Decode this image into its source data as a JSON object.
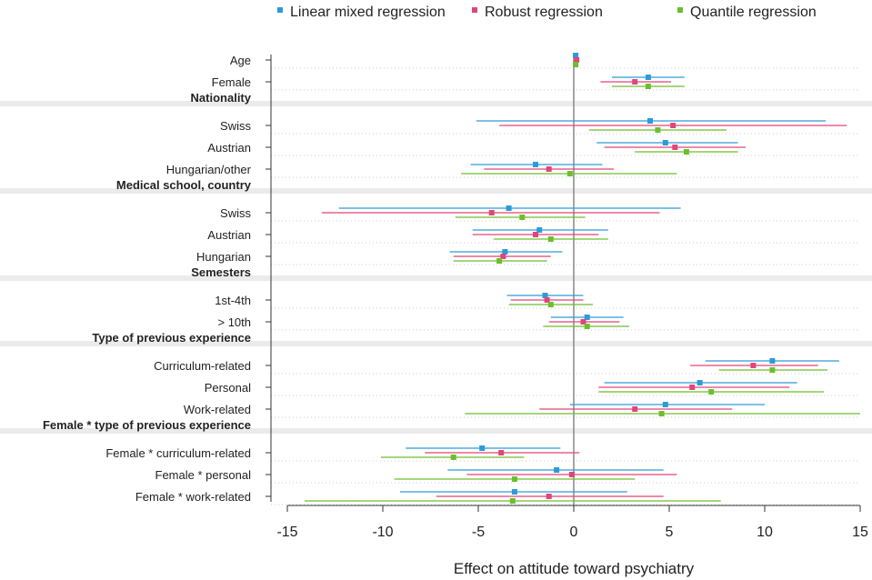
{
  "chart_data": {
    "type": "forest",
    "xlabel": "Effect on attitude toward psychiatry",
    "xlim": [
      -15,
      15
    ],
    "xticks": [
      -15,
      -10,
      -5,
      0,
      5,
      10,
      15
    ],
    "reference_line": 0,
    "series": [
      {
        "name": "Linear mixed regression",
        "color": "#2E9AD8"
      },
      {
        "name": "Robust regression",
        "color": "#E0457B"
      },
      {
        "name": "Quantile regression",
        "color": "#6DBE2E"
      }
    ],
    "rows": [
      {
        "label": "Age",
        "kind": "item",
        "estimates": [
          {
            "est": 0.1,
            "lo": 0.05,
            "hi": 0.15
          },
          {
            "est": 0.15,
            "lo": 0.1,
            "hi": 0.2
          },
          {
            "est": 0.1,
            "lo": 0.05,
            "hi": 0.15
          }
        ]
      },
      {
        "label": "Female",
        "kind": "item",
        "estimates": [
          {
            "est": 3.9,
            "lo": 2.0,
            "hi": 5.8
          },
          {
            "est": 3.2,
            "lo": 1.4,
            "hi": 5.1
          },
          {
            "est": 3.9,
            "lo": 2.0,
            "hi": 5.8
          }
        ]
      },
      {
        "label": "Nationality",
        "kind": "group"
      },
      {
        "label": "Swiss",
        "kind": "item",
        "estimates": [
          {
            "est": 4.0,
            "lo": -5.1,
            "hi": 13.2
          },
          {
            "est": 5.2,
            "lo": -3.9,
            "hi": 14.3
          },
          {
            "est": 4.4,
            "lo": 0.8,
            "hi": 8.0
          }
        ]
      },
      {
        "label": "Austrian",
        "kind": "item",
        "estimates": [
          {
            "est": 4.8,
            "lo": 1.2,
            "hi": 8.6
          },
          {
            "est": 5.3,
            "lo": 1.6,
            "hi": 9.0
          },
          {
            "est": 5.9,
            "lo": 3.2,
            "hi": 8.6
          }
        ]
      },
      {
        "label": "Hungarian/other",
        "kind": "item",
        "estimates": [
          {
            "est": -2.0,
            "lo": -5.4,
            "hi": 1.5
          },
          {
            "est": -1.3,
            "lo": -4.7,
            "hi": 2.1
          },
          {
            "est": -0.2,
            "lo": -5.9,
            "hi": 5.4
          }
        ]
      },
      {
        "label": "Medical school, country",
        "kind": "group"
      },
      {
        "label": "Swiss",
        "kind": "item",
        "estimates": [
          {
            "est": -3.4,
            "lo": -12.3,
            "hi": 5.6
          },
          {
            "est": -4.3,
            "lo": -13.2,
            "hi": 4.5
          },
          {
            "est": -2.7,
            "lo": -6.2,
            "hi": 0.6
          }
        ]
      },
      {
        "label": "Austrian",
        "kind": "item",
        "estimates": [
          {
            "est": -1.8,
            "lo": -5.3,
            "hi": 1.8
          },
          {
            "est": -2.0,
            "lo": -5.3,
            "hi": 1.3
          },
          {
            "est": -1.2,
            "lo": -4.2,
            "hi": 1.8
          }
        ]
      },
      {
        "label": "Hungarian",
        "kind": "item",
        "estimates": [
          {
            "est": -3.6,
            "lo": -6.5,
            "hi": -0.6
          },
          {
            "est": -3.7,
            "lo": -6.3,
            "hi": -1.2
          },
          {
            "est": -3.9,
            "lo": -6.3,
            "hi": -1.4
          }
        ]
      },
      {
        "label": "Semesters",
        "kind": "group"
      },
      {
        "label": "1st-4th",
        "kind": "item",
        "estimates": [
          {
            "est": -1.5,
            "lo": -3.5,
            "hi": 0.5
          },
          {
            "est": -1.4,
            "lo": -3.3,
            "hi": 0.5
          },
          {
            "est": -1.2,
            "lo": -3.4,
            "hi": 1.0
          }
        ]
      },
      {
        "label": "> 10th",
        "kind": "item",
        "estimates": [
          {
            "est": 0.7,
            "lo": -1.2,
            "hi": 2.6
          },
          {
            "est": 0.5,
            "lo": -1.3,
            "hi": 2.4
          },
          {
            "est": 0.7,
            "lo": -1.6,
            "hi": 2.9
          }
        ]
      },
      {
        "label": "Type of previous experience",
        "kind": "group"
      },
      {
        "label": "Curriculum-related",
        "kind": "item",
        "estimates": [
          {
            "est": 10.4,
            "lo": 6.9,
            "hi": 13.9
          },
          {
            "est": 9.4,
            "lo": 6.1,
            "hi": 12.8
          },
          {
            "est": 10.4,
            "lo": 7.6,
            "hi": 13.3
          }
        ]
      },
      {
        "label": "Personal",
        "kind": "item",
        "estimates": [
          {
            "est": 6.6,
            "lo": 1.6,
            "hi": 11.7
          },
          {
            "est": 6.2,
            "lo": 1.3,
            "hi": 11.3
          },
          {
            "est": 7.2,
            "lo": 1.3,
            "hi": 13.1
          }
        ]
      },
      {
        "label": "Work-related",
        "kind": "item",
        "estimates": [
          {
            "est": 4.8,
            "lo": -0.2,
            "hi": 10.0
          },
          {
            "est": 3.2,
            "lo": -1.8,
            "hi": 8.3
          },
          {
            "est": 4.6,
            "lo": -5.7,
            "hi": 15.0
          }
        ]
      },
      {
        "label": "Female * type of previous experience",
        "kind": "group"
      },
      {
        "label": "Female * curriculum-related",
        "kind": "item",
        "estimates": [
          {
            "est": -4.8,
            "lo": -8.8,
            "hi": -0.7
          },
          {
            "est": -3.8,
            "lo": -7.8,
            "hi": 0.3
          },
          {
            "est": -6.3,
            "lo": -10.1,
            "hi": -2.6
          }
        ]
      },
      {
        "label": "Female * personal",
        "kind": "item",
        "estimates": [
          {
            "est": -0.9,
            "lo": -6.6,
            "hi": 4.7
          },
          {
            "est": -0.1,
            "lo": -5.6,
            "hi": 5.4
          },
          {
            "est": -3.1,
            "lo": -9.4,
            "hi": 3.2
          }
        ]
      },
      {
        "label": "Female * work-related",
        "kind": "item",
        "estimates": [
          {
            "est": -3.1,
            "lo": -9.1,
            "hi": 2.8
          },
          {
            "est": -1.3,
            "lo": -7.2,
            "hi": 4.7
          },
          {
            "est": -3.2,
            "lo": -14.1,
            "hi": 7.7
          }
        ]
      }
    ]
  }
}
